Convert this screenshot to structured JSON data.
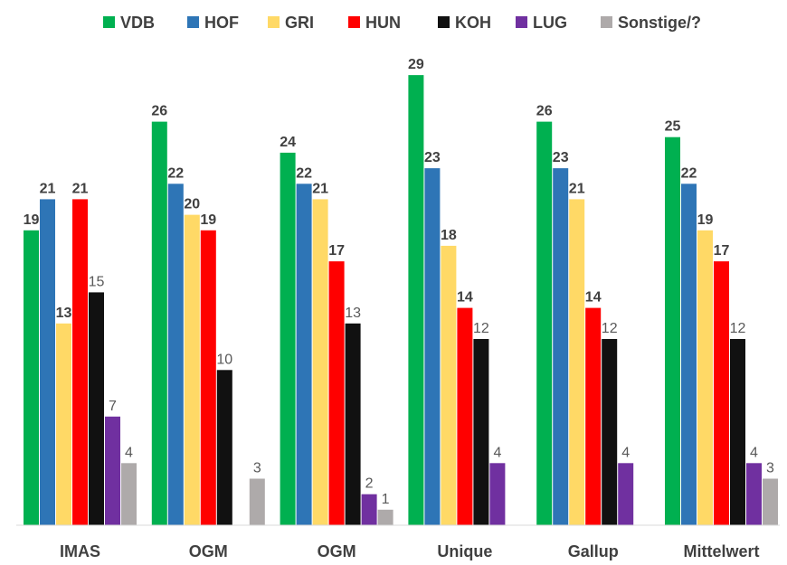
{
  "chart_data": {
    "type": "bar",
    "title": "",
    "xlabel": "",
    "ylabel": "",
    "ylim": [
      0,
      30
    ],
    "grid": false,
    "legend": "top",
    "categories": [
      "IMAS",
      "OGM",
      "OGM",
      "Unique",
      "Gallup",
      "Mittelwert"
    ],
    "series": [
      {
        "name": "VDB",
        "color": "#00B050",
        "values": [
          19,
          26,
          24,
          29,
          26,
          25
        ],
        "label_style": "bold"
      },
      {
        "name": "HOF",
        "color": "#2E75B6",
        "values": [
          21,
          22,
          22,
          23,
          23,
          22
        ],
        "label_style": "bold"
      },
      {
        "name": "GRI",
        "color": "#FFD966",
        "values": [
          13,
          20,
          21,
          18,
          21,
          19
        ],
        "label_style": "bold"
      },
      {
        "name": "HUN",
        "color": "#FF0000",
        "values": [
          21,
          19,
          17,
          14,
          14,
          17
        ],
        "label_style": "bold"
      },
      {
        "name": "KOH",
        "color": "#111111",
        "values": [
          15,
          10,
          13,
          12,
          12,
          12
        ],
        "label_style": "normal"
      },
      {
        "name": "LUG",
        "color": "#7030A0",
        "values": [
          7,
          null,
          2,
          4,
          4,
          4
        ],
        "label_style": "normal"
      },
      {
        "name": "Sonstige/?",
        "color": "#AEAAAA",
        "values": [
          4,
          3,
          1,
          null,
          null,
          3
        ],
        "label_style": "normal"
      }
    ]
  }
}
